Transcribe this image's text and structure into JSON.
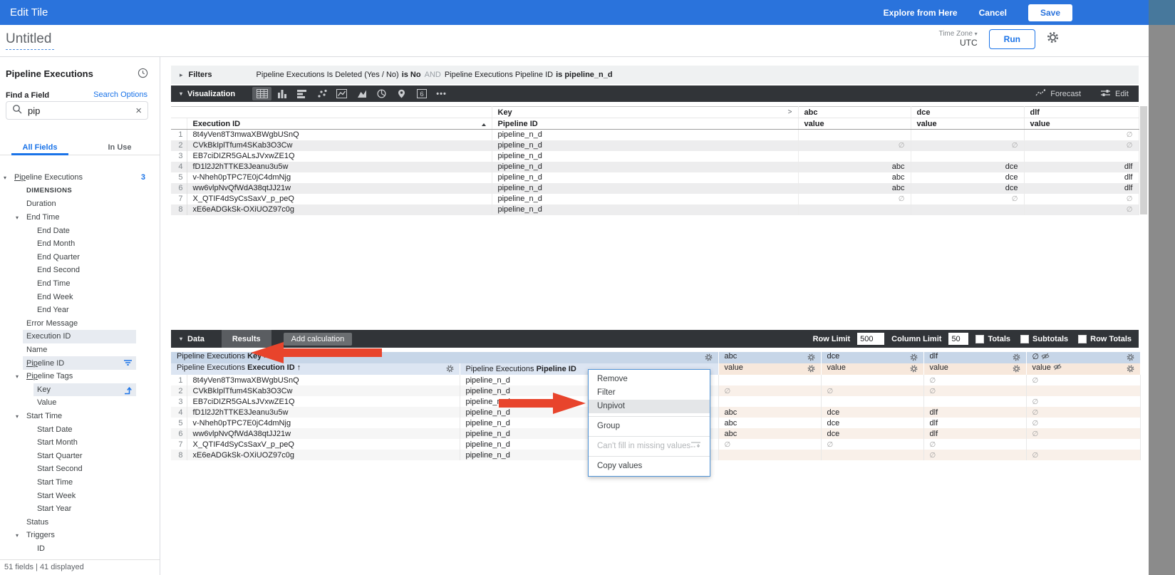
{
  "colors": {
    "accent_blue": "#1a73e8",
    "topbar_blue": "#2a73dc",
    "arrow_red": "#e8442c",
    "pivot_header_bg": "#c7d6e8",
    "dimension_header_bg": "#dce5f2",
    "measure_header_bg": "#f7e8dc"
  },
  "topbar": {
    "title": "Edit Tile",
    "explore": "Explore from Here",
    "cancel": "Cancel",
    "save": "Save"
  },
  "header": {
    "title": "Untitled",
    "timezone_label": "Time Zone",
    "timezone_value": "UTC",
    "run": "Run"
  },
  "sidebar": {
    "view_title": "Pipeline Executions",
    "find_label": "Find a Field",
    "search_options": "Search Options",
    "search_value": "pip",
    "tabs": [
      "All Fields",
      "In Use"
    ],
    "active_tab": "All Fields",
    "footer": "51 fields | 41 displayed",
    "tree": [
      {
        "label": "Pipeline Executions",
        "depth": 0,
        "expander": true,
        "match_len": 3,
        "count": "3"
      },
      {
        "label": "DIMENSIONS",
        "depth": 1,
        "section": true
      },
      {
        "label": "Duration",
        "depth": 1
      },
      {
        "label": "End Time",
        "depth": 1,
        "expander": true
      },
      {
        "label": "End Date",
        "depth": 2
      },
      {
        "label": "End Month",
        "depth": 2
      },
      {
        "label": "End Quarter",
        "depth": 2
      },
      {
        "label": "End Second",
        "depth": 2
      },
      {
        "label": "End Time",
        "depth": 2
      },
      {
        "label": "End Week",
        "depth": 2
      },
      {
        "label": "End Year",
        "depth": 2
      },
      {
        "label": "Error Message",
        "depth": 1
      },
      {
        "label": "Execution ID",
        "depth": 1,
        "highlight": true
      },
      {
        "label": "Name",
        "depth": 1
      },
      {
        "label": "Pipeline ID",
        "depth": 1,
        "highlight": true,
        "match_len": 3,
        "icon": "filter"
      },
      {
        "label": "Pipeline Tags",
        "depth": 1,
        "expander": true,
        "match_len": 3
      },
      {
        "label": "Key",
        "depth": 2,
        "highlight": true,
        "icon": "pivot"
      },
      {
        "label": "Value",
        "depth": 2
      },
      {
        "label": "Start Time",
        "depth": 1,
        "expander": true
      },
      {
        "label": "Start Date",
        "depth": 2
      },
      {
        "label": "Start Month",
        "depth": 2
      },
      {
        "label": "Start Quarter",
        "depth": 2
      },
      {
        "label": "Start Second",
        "depth": 2
      },
      {
        "label": "Start Time",
        "depth": 2
      },
      {
        "label": "Start Week",
        "depth": 2
      },
      {
        "label": "Start Year",
        "depth": 2
      },
      {
        "label": "Status",
        "depth": 1
      },
      {
        "label": "Triggers",
        "depth": 1,
        "expander": true
      },
      {
        "label": "ID",
        "depth": 2
      }
    ]
  },
  "filters": {
    "label": "Filters",
    "clause1_field": "Pipeline Executions Is Deleted (Yes / No)",
    "clause1_cond": "is No",
    "conjunction": "AND",
    "clause2_field": "Pipeline Executions Pipeline ID",
    "clause2_cond": "is pipeline_n_d"
  },
  "vizbar": {
    "label": "Visualization",
    "icons": [
      "table",
      "column",
      "bar",
      "scatter",
      "line",
      "area",
      "pie",
      "map",
      "single-value",
      "more"
    ],
    "active_icon": "table",
    "single_value_glyph": "6",
    "forecast": "Forecast",
    "edit": "Edit"
  },
  "viz_table": {
    "group_header": "Key",
    "key_chevron": ">",
    "col_execution": "Execution ID",
    "col_pipeline": "Pipeline ID",
    "pivot_columns": [
      "abc",
      "dce",
      "dlf"
    ],
    "value_label": "value",
    "rows": [
      {
        "n": "1",
        "execution_id": "8t4yVen8T3mwaXBWgbUSnQ",
        "pipeline_id": "pipeline_n_d",
        "abc": "",
        "dce": "",
        "dlf": "∅"
      },
      {
        "n": "2",
        "execution_id": "CVkBkIplTfum4SKab3O3Cw",
        "pipeline_id": "pipeline_n_d",
        "abc": "∅",
        "dce": "∅",
        "dlf": "∅"
      },
      {
        "n": "3",
        "execution_id": "EB7ciDIZR5GALsJVxwZE1Q",
        "pipeline_id": "pipeline_n_d",
        "abc": "",
        "dce": "",
        "dlf": ""
      },
      {
        "n": "4",
        "execution_id": "fD1l2J2hTTKE3Jeanu3u5w",
        "pipeline_id": "pipeline_n_d",
        "abc": "abc",
        "dce": "dce",
        "dlf": "dlf"
      },
      {
        "n": "5",
        "execution_id": "v-Nheh0pTPC7E0jC4dmNjg",
        "pipeline_id": "pipeline_n_d",
        "abc": "abc",
        "dce": "dce",
        "dlf": "dlf"
      },
      {
        "n": "6",
        "execution_id": "ww6vlpNvQfWdA38qtJJ21w",
        "pipeline_id": "pipeline_n_d",
        "abc": "abc",
        "dce": "dce",
        "dlf": "dlf"
      },
      {
        "n": "7",
        "execution_id": "X_QTIF4dSyCsSaxV_p_peQ",
        "pipeline_id": "pipeline_n_d",
        "abc": "∅",
        "dce": "∅",
        "dlf": "∅"
      },
      {
        "n": "8",
        "execution_id": "xE6eADGkSk-OXiUOZ97c0g",
        "pipeline_id": "pipeline_n_d",
        "abc": "",
        "dce": "",
        "dlf": "∅"
      }
    ]
  },
  "databar": {
    "label": "Data",
    "results_tab": "Results",
    "add_calc": "Add calculation",
    "row_limit_label": "Row Limit",
    "row_limit": "500",
    "column_limit_label": "Column Limit",
    "column_limit": "50",
    "checkboxes": [
      "Totals",
      "Subtotals",
      "Row Totals"
    ]
  },
  "results_table": {
    "prefix": "Pipeline Executions",
    "pivot_field": "Key",
    "pivot_chevron": ">",
    "exec_field": "Execution ID",
    "sort_arrow": "↑",
    "pipe_field": "Pipeline ID",
    "pivot_values": [
      "abc",
      "dce",
      "dlf",
      "∅"
    ],
    "value_label": "value",
    "rows": [
      {
        "n": "1",
        "execution_id": "8t4yVen8T3mwaXBWgbUSnQ",
        "pipeline_id": "pipeline_n_d",
        "abc": "",
        "dce": "",
        "dlf": "∅",
        "null_col": "∅"
      },
      {
        "n": "2",
        "execution_id": "CVkBkIplTfum4SKab3O3Cw",
        "pipeline_id": "pipeline_n_d",
        "abc": "∅",
        "dce": "∅",
        "dlf": "∅",
        "null_col": ""
      },
      {
        "n": "3",
        "execution_id": "EB7ciDIZR5GALsJVxwZE1Q",
        "pipeline_id": "pipeline_n_d",
        "abc": "",
        "dce": "",
        "dlf": "",
        "null_col": "∅"
      },
      {
        "n": "4",
        "execution_id": "fD1l2J2hTTKE3Jeanu3u5w",
        "pipeline_id": "pipeline_n_d",
        "abc": "abc",
        "dce": "dce",
        "dlf": "dlf",
        "null_col": "∅"
      },
      {
        "n": "5",
        "execution_id": "v-Nheh0pTPC7E0jC4dmNjg",
        "pipeline_id": "pipeline_n_d",
        "abc": "abc",
        "dce": "dce",
        "dlf": "dlf",
        "null_col": "∅"
      },
      {
        "n": "6",
        "execution_id": "ww6vlpNvQfWdA38qtJJ21w",
        "pipeline_id": "pipeline_n_d",
        "abc": "abc",
        "dce": "dce",
        "dlf": "dlf",
        "null_col": "∅"
      },
      {
        "n": "7",
        "execution_id": "X_QTIF4dSyCsSaxV_p_peQ",
        "pipeline_id": "pipeline_n_d",
        "abc": "∅",
        "dce": "∅",
        "dlf": "∅",
        "null_col": ""
      },
      {
        "n": "8",
        "execution_id": "xE6eADGkSk-OXiUOZ97c0g",
        "pipeline_id": "pipeline_n_d",
        "abc": "",
        "dce": "",
        "dlf": "∅",
        "null_col": "∅"
      }
    ]
  },
  "menu": {
    "items": [
      {
        "label": "Remove"
      },
      {
        "label": "Filter"
      },
      {
        "label": "Unpivot",
        "highlight": true
      },
      {
        "divider": true
      },
      {
        "label": "Group"
      },
      {
        "divider": true
      },
      {
        "label": "Can't fill in missing values",
        "disabled": true,
        "icon": "fill-missing"
      },
      {
        "divider": true
      },
      {
        "label": "Copy values"
      }
    ]
  }
}
